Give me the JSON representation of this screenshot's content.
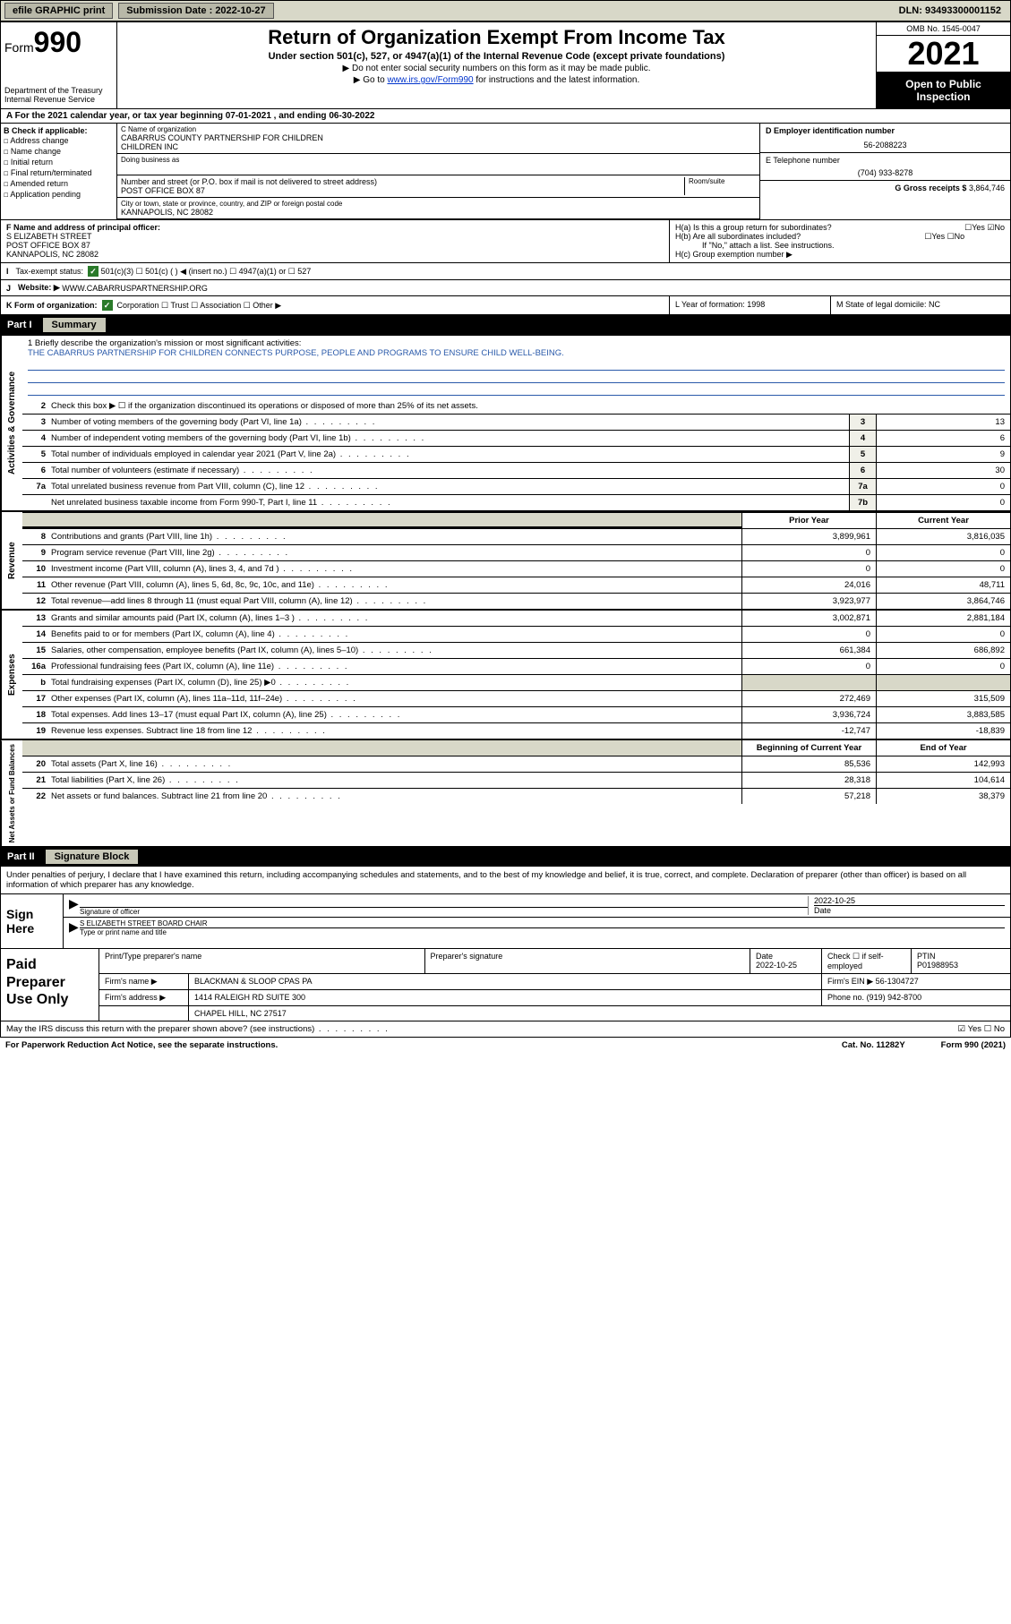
{
  "topbar": {
    "efile": "efile GRAPHIC print",
    "submission_label": "Submission Date : 2022-10-27",
    "dln": "DLN: 93493300001152"
  },
  "header": {
    "form_prefix": "Form",
    "form_number": "990",
    "dept": "Department of the Treasury",
    "irs": "Internal Revenue Service",
    "title": "Return of Organization Exempt From Income Tax",
    "subtitle": "Under section 501(c), 527, or 4947(a)(1) of the Internal Revenue Code (except private foundations)",
    "note1": "▶ Do not enter social security numbers on this form as it may be made public.",
    "note2_pre": "▶ Go to ",
    "note2_link": "www.irs.gov/Form990",
    "note2_post": " for instructions and the latest information.",
    "omb": "OMB No. 1545-0047",
    "year": "2021",
    "open": "Open to Public Inspection"
  },
  "row_a": "A For the 2021 calendar year, or tax year beginning 07-01-2021   , and ending 06-30-2022",
  "col_b": {
    "title": "B Check if applicable:",
    "items": [
      "Address change",
      "Name change",
      "Initial return",
      "Final return/terminated",
      "Amended return",
      "Application pending"
    ]
  },
  "org": {
    "name_lbl": "C Name of organization",
    "name1": "CABARRUS COUNTY PARTNERSHIP FOR CHILDREN",
    "name2": "CHILDREN INC",
    "dba_lbl": "Doing business as",
    "addr_lbl": "Number and street (or P.O. box if mail is not delivered to street address)",
    "addr": "POST OFFICE BOX 87",
    "room_lbl": "Room/suite",
    "city_lbl": "City or town, state or province, country, and ZIP or foreign postal code",
    "city": "KANNAPOLIS, NC  28082"
  },
  "right": {
    "ein_lbl": "D Employer identification number",
    "ein": "56-2088223",
    "tel_lbl": "E Telephone number",
    "tel": "(704) 933-8278",
    "gross_lbl": "G Gross receipts $",
    "gross": "3,864,746"
  },
  "f": {
    "lbl": "F Name and address of principal officer:",
    "name": "S ELIZABETH STREET",
    "addr": "POST OFFICE BOX 87",
    "city": "KANNAPOLIS, NC  28082"
  },
  "h": {
    "ha": "H(a)  Is this a group return for subordinates?",
    "ha_ans": "☐Yes ☑No",
    "hb": "H(b)  Are all subordinates included?",
    "hb_ans": "☐Yes ☐No",
    "hb_note": "If \"No,\" attach a list. See instructions.",
    "hc": "H(c)  Group exemption number ▶"
  },
  "i": {
    "lbl": "Tax-exempt status:",
    "opts": "501(c)(3)    ☐  501(c) (  ) ◀ (insert no.)     ☐ 4947(a)(1) or  ☐ 527"
  },
  "j": {
    "lbl": "Website: ▶",
    "val": "WWW.CABARRUSPARTNERSHIP.ORG"
  },
  "k": {
    "lbl": "K Form of organization:",
    "opts": "Corporation  ☐ Trust  ☐ Association  ☐ Other ▶"
  },
  "l": "L Year of formation: 1998",
  "m": "M State of legal domicile: NC",
  "part1": {
    "tag": "Part I",
    "title": "Summary"
  },
  "mission": {
    "q": "1   Briefly describe the organization's mission or most significant activities:",
    "text": "THE CABARRUS PARTNERSHIP FOR CHILDREN CONNECTS PURPOSE, PEOPLE AND PROGRAMS TO ENSURE CHILD WELL-BEING."
  },
  "gov": {
    "l2": "Check this box ▶ ☐  if the organization discontinued its operations or disposed of more than 25% of its net assets.",
    "rows": [
      {
        "n": "3",
        "d": "Number of voting members of the governing body (Part VI, line 1a)",
        "b": "3",
        "v": "13"
      },
      {
        "n": "4",
        "d": "Number of independent voting members of the governing body (Part VI, line 1b)",
        "b": "4",
        "v": "6"
      },
      {
        "n": "5",
        "d": "Total number of individuals employed in calendar year 2021 (Part V, line 2a)",
        "b": "5",
        "v": "9"
      },
      {
        "n": "6",
        "d": "Total number of volunteers (estimate if necessary)",
        "b": "6",
        "v": "30"
      },
      {
        "n": "7a",
        "d": "Total unrelated business revenue from Part VIII, column (C), line 12",
        "b": "7a",
        "v": "0"
      },
      {
        "n": "",
        "d": "Net unrelated business taxable income from Form 990-T, Part I, line 11",
        "b": "7b",
        "v": "0"
      }
    ]
  },
  "colheads": {
    "c1": "Prior Year",
    "c2": "Current Year"
  },
  "rev": [
    {
      "n": "8",
      "d": "Contributions and grants (Part VIII, line 1h)",
      "p": "3,899,961",
      "c": "3,816,035"
    },
    {
      "n": "9",
      "d": "Program service revenue (Part VIII, line 2g)",
      "p": "0",
      "c": "0"
    },
    {
      "n": "10",
      "d": "Investment income (Part VIII, column (A), lines 3, 4, and 7d )",
      "p": "0",
      "c": "0"
    },
    {
      "n": "11",
      "d": "Other revenue (Part VIII, column (A), lines 5, 6d, 8c, 9c, 10c, and 11e)",
      "p": "24,016",
      "c": "48,711"
    },
    {
      "n": "12",
      "d": "Total revenue—add lines 8 through 11 (must equal Part VIII, column (A), line 12)",
      "p": "3,923,977",
      "c": "3,864,746"
    }
  ],
  "exp": [
    {
      "n": "13",
      "d": "Grants and similar amounts paid (Part IX, column (A), lines 1–3 )",
      "p": "3,002,871",
      "c": "2,881,184"
    },
    {
      "n": "14",
      "d": "Benefits paid to or for members (Part IX, column (A), line 4)",
      "p": "0",
      "c": "0"
    },
    {
      "n": "15",
      "d": "Salaries, other compensation, employee benefits (Part IX, column (A), lines 5–10)",
      "p": "661,384",
      "c": "686,892"
    },
    {
      "n": "16a",
      "d": "Professional fundraising fees (Part IX, column (A), line 11e)",
      "p": "0",
      "c": "0"
    },
    {
      "n": "b",
      "d": "Total fundraising expenses (Part IX, column (D), line 25) ▶0",
      "p": "",
      "c": "",
      "shade": true
    },
    {
      "n": "17",
      "d": "Other expenses (Part IX, column (A), lines 11a–11d, 11f–24e)",
      "p": "272,469",
      "c": "315,509"
    },
    {
      "n": "18",
      "d": "Total expenses. Add lines 13–17 (must equal Part IX, column (A), line 25)",
      "p": "3,936,724",
      "c": "3,883,585"
    },
    {
      "n": "19",
      "d": "Revenue less expenses. Subtract line 18 from line 12",
      "p": "-12,747",
      "c": "-18,839"
    }
  ],
  "colheads2": {
    "c1": "Beginning of Current Year",
    "c2": "End of Year"
  },
  "net": [
    {
      "n": "20",
      "d": "Total assets (Part X, line 16)",
      "p": "85,536",
      "c": "142,993"
    },
    {
      "n": "21",
      "d": "Total liabilities (Part X, line 26)",
      "p": "28,318",
      "c": "104,614"
    },
    {
      "n": "22",
      "d": "Net assets or fund balances. Subtract line 21 from line 20",
      "p": "57,218",
      "c": "38,379"
    }
  ],
  "part2": {
    "tag": "Part II",
    "title": "Signature Block"
  },
  "sig": {
    "intro": "Under penalties of perjury, I declare that I have examined this return, including accompanying schedules and statements, and to the best of my knowledge and belief, it is true, correct, and complete. Declaration of preparer (other than officer) is based on all information of which preparer has any knowledge.",
    "here": "Sign Here",
    "sig_lbl": "Signature of officer",
    "date_lbl": "Date",
    "date": "2022-10-25",
    "officer": "S ELIZABETH STREET  BOARD CHAIR",
    "officer_lbl": "Type or print name and title"
  },
  "prep": {
    "label": "Paid Preparer Use Only",
    "h1": "Print/Type preparer's name",
    "h2": "Preparer's signature",
    "h3": "Date",
    "h3v": "2022-10-25",
    "h4": "Check ☐ if self-employed",
    "h5": "PTIN",
    "ptin": "P01988953",
    "firm_lbl": "Firm's name    ▶",
    "firm": "BLACKMAN & SLOOP CPAS PA",
    "ein_lbl": "Firm's EIN ▶",
    "ein": "56-1304727",
    "addr_lbl": "Firm's address ▶",
    "addr1": "1414 RALEIGH RD SUITE 300",
    "addr2": "CHAPEL HILL, NC  27517",
    "phone_lbl": "Phone no.",
    "phone": "(919) 942-8700"
  },
  "discuss": {
    "q": "May the IRS discuss this return with the preparer shown above? (see instructions)",
    "a": "☑ Yes  ☐ No"
  },
  "bottom": {
    "l": "For Paperwork Reduction Act Notice, see the separate instructions.",
    "m": "Cat. No. 11282Y",
    "r": "Form 990 (2021)"
  },
  "side_labels": {
    "gov": "Activities & Governance",
    "rev": "Revenue",
    "exp": "Expenses",
    "net": "Net Assets or Fund Balances"
  }
}
